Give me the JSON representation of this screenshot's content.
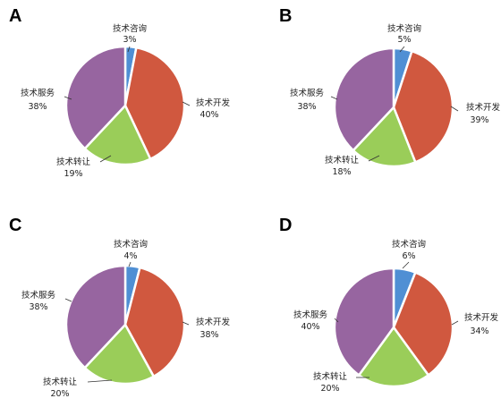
{
  "colors": {
    "技术咨询": "#4f8fd4",
    "技术开发": "#d0583f",
    "技术转让": "#9acd59",
    "技术服务": "#9765a0"
  },
  "chart_data": [
    {
      "type": "pie",
      "panel": "A",
      "slices": [
        {
          "label": "技术咨询",
          "value": 3,
          "text": "3%"
        },
        {
          "label": "技术开发",
          "value": 40,
          "text": "40%"
        },
        {
          "label": "技术转让",
          "value": 19,
          "text": "19%"
        },
        {
          "label": "技术服务",
          "value": 38,
          "text": "38%"
        }
      ]
    },
    {
      "type": "pie",
      "panel": "B",
      "slices": [
        {
          "label": "技术咨询",
          "value": 5,
          "text": "5%"
        },
        {
          "label": "技术开发",
          "value": 39,
          "text": "39%"
        },
        {
          "label": "技术转让",
          "value": 18,
          "text": "18%"
        },
        {
          "label": "技术服务",
          "value": 38,
          "text": "38%"
        }
      ]
    },
    {
      "type": "pie",
      "panel": "C",
      "slices": [
        {
          "label": "技术咨询",
          "value": 4,
          "text": "4%"
        },
        {
          "label": "技术开发",
          "value": 38,
          "text": "38%"
        },
        {
          "label": "技术转让",
          "value": 20,
          "text": "20%"
        },
        {
          "label": "技术服务",
          "value": 38,
          "text": "38%"
        }
      ]
    },
    {
      "type": "pie",
      "panel": "D",
      "slices": [
        {
          "label": "技术咨询",
          "value": 6,
          "text": "6%"
        },
        {
          "label": "技术开发",
          "value": 34,
          "text": "34%"
        },
        {
          "label": "技术转让",
          "value": 20,
          "text": "20%"
        },
        {
          "label": "技术服务",
          "value": 40,
          "text": "40%"
        }
      ]
    }
  ]
}
